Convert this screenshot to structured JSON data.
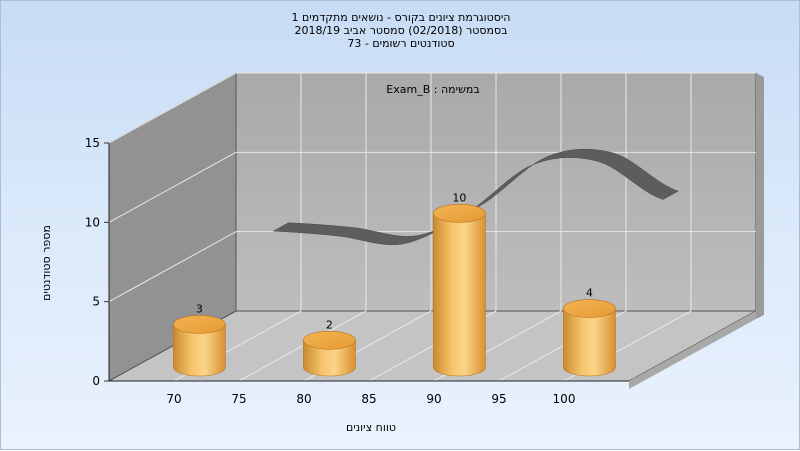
{
  "chart_data": {
    "type": "bar",
    "title_lines": [
      "היסטוגרמת ציונים בקורס - נושאים מתקדמים 1",
      "בסמסטר  (02/2018)  סמסטר אביב 2018/19",
      "סטודנטים רשומים - 73"
    ],
    "subtitle": "במשימה : Exam_B",
    "xlabel": "טווח ציונים",
    "ylabel": "מספר סטודנטים",
    "x_ticks": [
      "70",
      "75",
      "80",
      "85",
      "90",
      "95",
      "100"
    ],
    "y_ticks": [
      "0",
      "5",
      "10",
      "15"
    ],
    "ylim": [
      0,
      15
    ],
    "categories": [
      "70",
      "80",
      "90",
      "100"
    ],
    "values": [
      3,
      2,
      10,
      4
    ],
    "data_labels": [
      "3",
      "2",
      "10",
      "4"
    ],
    "curve": {
      "x": [
        70,
        75,
        80,
        85,
        90,
        95,
        100
      ],
      "y": [
        6.0,
        5.7,
        5.2,
        7.2,
        10.2,
        10.4,
        8.0
      ]
    },
    "grid": true,
    "colors": {
      "bar": "#e9a13f",
      "bar_highlight": "#fbd48a",
      "curve": "#5d5d5d",
      "back_wall": "#b3b3b3",
      "side_wall": "#8f8f8f",
      "floor": "#c6c6c6"
    }
  }
}
